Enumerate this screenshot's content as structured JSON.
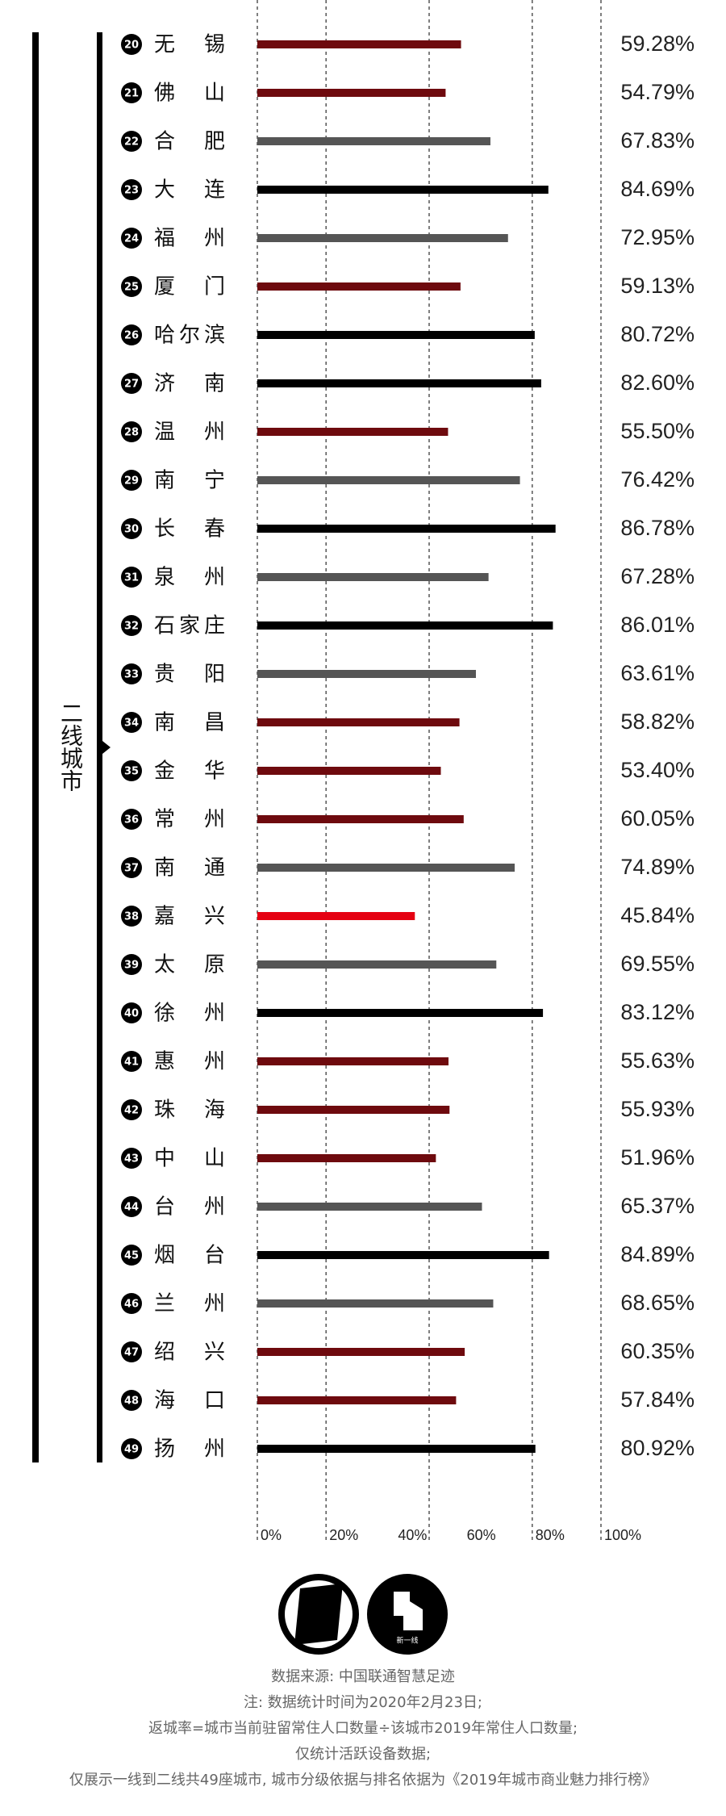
{
  "chart_data": {
    "type": "bar",
    "orientation": "horizontal",
    "group_label": "二线城市",
    "ranks": [
      20,
      21,
      22,
      23,
      24,
      25,
      26,
      27,
      28,
      29,
      30,
      31,
      32,
      33,
      34,
      35,
      36,
      37,
      38,
      39,
      40,
      41,
      42,
      43,
      44,
      45,
      46,
      47,
      48,
      49
    ],
    "categories": [
      "无锡",
      "佛山",
      "合肥",
      "大连",
      "福州",
      "厦门",
      "哈尔滨",
      "济南",
      "温州",
      "南宁",
      "长春",
      "泉州",
      "石家庄",
      "贵阳",
      "南昌",
      "金华",
      "常州",
      "南通",
      "嘉兴",
      "太原",
      "徐州",
      "惠州",
      "珠海",
      "中山",
      "台州",
      "烟台",
      "兰州",
      "绍兴",
      "海口",
      "扬州"
    ],
    "values": [
      59.28,
      54.79,
      67.83,
      84.69,
      72.95,
      59.13,
      80.72,
      82.6,
      55.5,
      76.42,
      86.78,
      67.28,
      86.01,
      63.61,
      58.82,
      53.4,
      60.05,
      74.89,
      45.84,
      69.55,
      83.12,
      55.63,
      55.93,
      51.96,
      65.37,
      84.89,
      68.65,
      60.35,
      57.84,
      80.92
    ],
    "value_labels": [
      "59.28%",
      "54.79%",
      "67.83%",
      "84.69%",
      "72.95%",
      "59.13%",
      "80.72%",
      "82.60%",
      "55.50%",
      "76.42%",
      "86.78%",
      "67.28%",
      "86.01%",
      "63.61%",
      "58.82%",
      "53.40%",
      "60.05%",
      "74.89%",
      "45.84%",
      "69.55%",
      "83.12%",
      "55.63%",
      "55.93%",
      "51.96%",
      "65.37%",
      "84.89%",
      "68.65%",
      "60.35%",
      "57.84%",
      "80.92%"
    ],
    "colors": [
      "#6e0a0e",
      "#6e0a0e",
      "#555555",
      "#000000",
      "#555555",
      "#6e0a0e",
      "#000000",
      "#000000",
      "#6e0a0e",
      "#555555",
      "#000000",
      "#555555",
      "#000000",
      "#555555",
      "#6e0a0e",
      "#6e0a0e",
      "#6e0a0e",
      "#555555",
      "#e50012",
      "#555555",
      "#000000",
      "#6e0a0e",
      "#6e0a0e",
      "#6e0a0e",
      "#555555",
      "#000000",
      "#555555",
      "#6e0a0e",
      "#6e0a0e",
      "#000000"
    ],
    "xlim": [
      0,
      100
    ],
    "xticks": [
      {
        "value": 0,
        "label": "0%"
      },
      {
        "value": 20,
        "label": "20%"
      },
      {
        "value": 40,
        "label": "40%"
      },
      {
        "value": 60,
        "label": "60%"
      },
      {
        "value": 80,
        "label": "80%"
      },
      {
        "value": 100,
        "label": "100%"
      }
    ],
    "grid_lines": [
      0,
      20,
      50,
      80,
      100
    ]
  },
  "logo_text": "新一线",
  "footer": [
    "数据来源: 中国联通智慧足迹",
    "注: 数据统计时间为2020年2月23日;",
    "返城率=城市当前驻留常住人口数量÷该城市2019年常住人口数量;",
    "仅统计活跃设备数据;",
    "仅展示一线到二线共49座城市, 城市分级依据与排名依据为《2019年城市商业魅力排行榜》"
  ]
}
